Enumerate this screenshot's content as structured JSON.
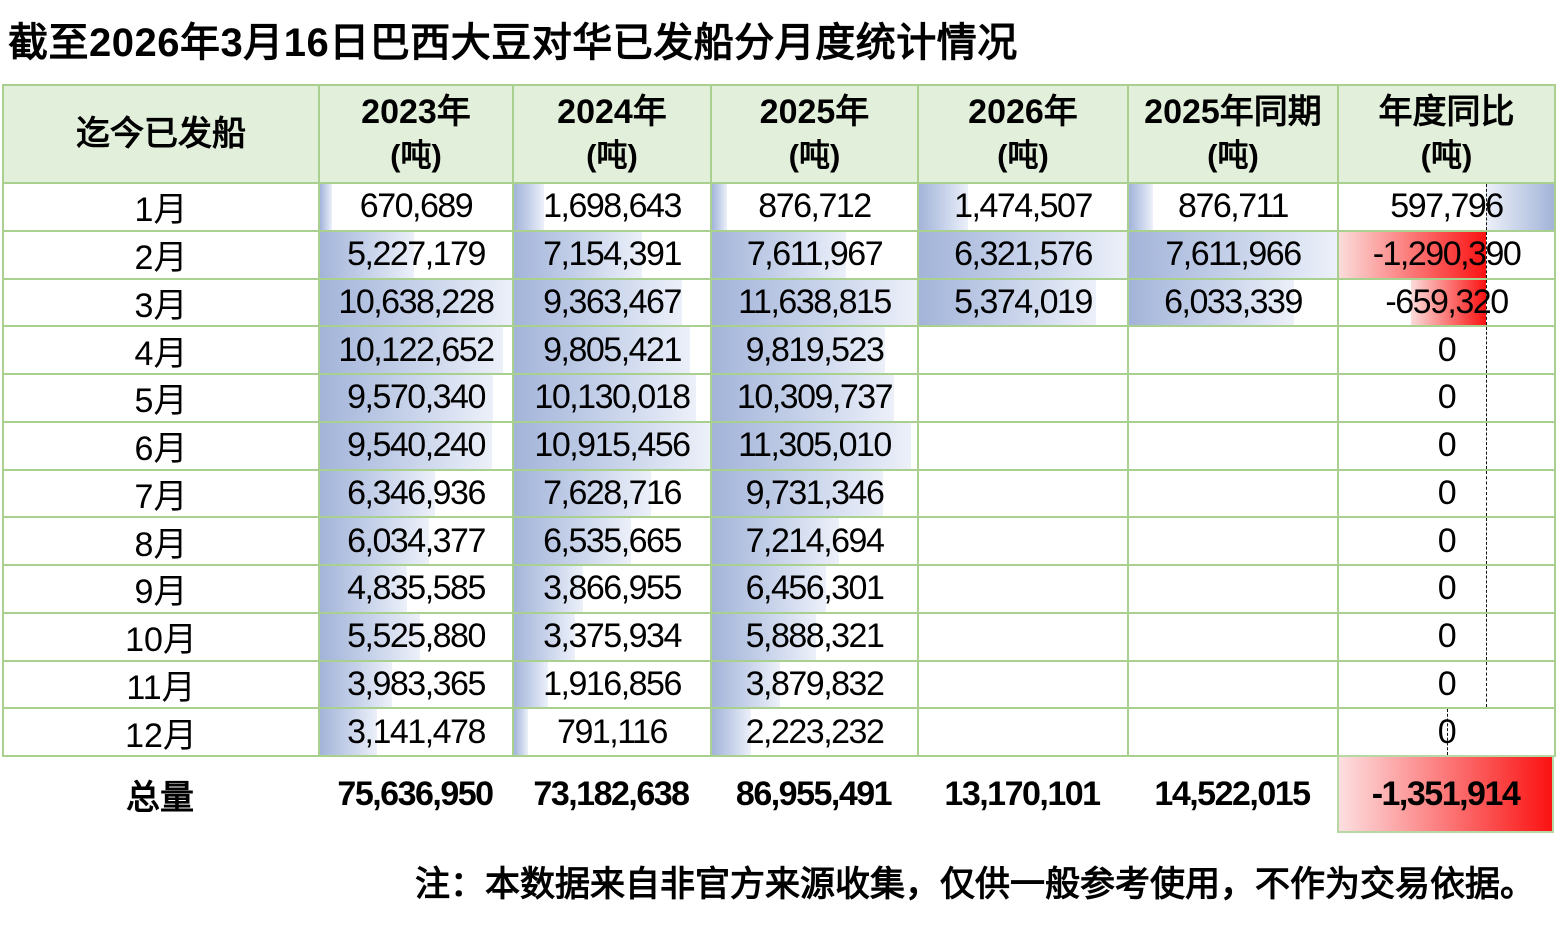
{
  "title": "截至2026年3月16日巴西大豆对华已发船分月度统计情况",
  "note": "注：本数据来自非官方来源收集，仅供一般参考使用，不作为交易依据。",
  "header": {
    "first_col": "迄今已发船",
    "year_cols": [
      {
        "label": "2023年",
        "unit": "(吨)"
      },
      {
        "label": "2024年",
        "unit": "(吨)"
      },
      {
        "label": "2025年",
        "unit": "(吨)"
      },
      {
        "label": "2026年",
        "unit": "(吨)"
      },
      {
        "label": "2025年同期",
        "unit": "(吨)"
      },
      {
        "label": "年度同比",
        "unit": "(吨)"
      }
    ]
  },
  "chart_data": {
    "type": "table",
    "title": "截至2026年3月16日巴西大豆对华已发船分月度统计情况",
    "columns": [
      "迄今已发船",
      "2023年(吨)",
      "2024年(吨)",
      "2025年(吨)",
      "2026年(吨)",
      "2025年同期(吨)",
      "年度同比(吨)"
    ],
    "rows": [
      {
        "month": "1月",
        "values": [
          670689,
          1698643,
          876712,
          1474507,
          876711
        ],
        "yoy": 597796
      },
      {
        "month": "2月",
        "values": [
          5227179,
          7154391,
          7611967,
          6321576,
          7611966
        ],
        "yoy": -1290390
      },
      {
        "month": "3月",
        "values": [
          10638228,
          9363467,
          11638815,
          5374019,
          6033339
        ],
        "yoy": -659320
      },
      {
        "month": "4月",
        "values": [
          10122652,
          9805421,
          9819523,
          null,
          null
        ],
        "yoy": 0
      },
      {
        "month": "5月",
        "values": [
          9570340,
          10130018,
          10309737,
          null,
          null
        ],
        "yoy": 0
      },
      {
        "month": "6月",
        "values": [
          9540240,
          10915456,
          11305010,
          null,
          null
        ],
        "yoy": 0
      },
      {
        "month": "7月",
        "values": [
          6346936,
          7628716,
          9731346,
          null,
          null
        ],
        "yoy": 0
      },
      {
        "month": "8月",
        "values": [
          6034377,
          6535665,
          7214694,
          null,
          null
        ],
        "yoy": 0
      },
      {
        "month": "9月",
        "values": [
          4835585,
          3866955,
          6456301,
          null,
          null
        ],
        "yoy": 0
      },
      {
        "month": "10月",
        "values": [
          5525880,
          3375934,
          5888321,
          null,
          null
        ],
        "yoy": 0
      },
      {
        "month": "11月",
        "values": [
          3983365,
          1916856,
          3879832,
          null,
          null
        ],
        "yoy": 0
      },
      {
        "month": "12月",
        "values": [
          3141478,
          791116,
          2223232,
          null,
          null
        ],
        "yoy": 0
      }
    ],
    "totals": {
      "label": "总量",
      "values": [
        75636950,
        73182638,
        86955491,
        13170101,
        14522015
      ],
      "yoy": -1351914
    }
  },
  "colors": {
    "header_bg": "#e2efda",
    "border_green": "#a9d08e",
    "bar_blue_solid": "#a3b4d9",
    "bar_blue_light": "#ecf0f9",
    "bar_red_solid": "#fb1212",
    "bar_red_light": "#fbdcda",
    "total_red_border": "#b7d7a4"
  }
}
